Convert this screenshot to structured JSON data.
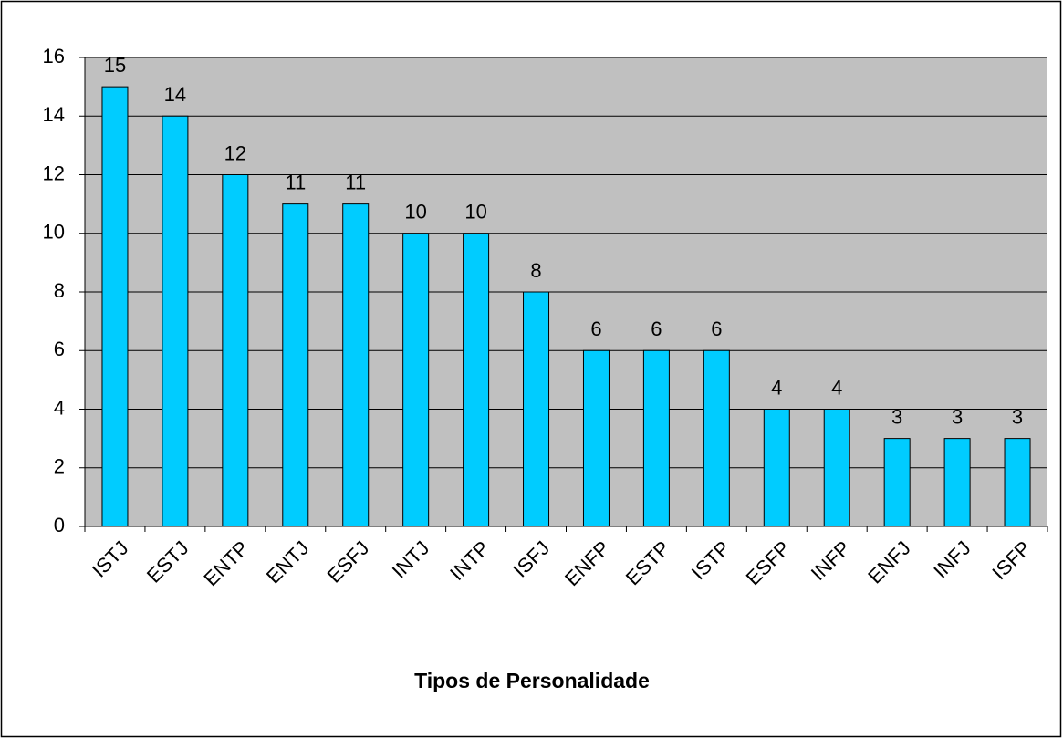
{
  "chart_data": {
    "type": "bar",
    "xlabel": "Tipos de Personalidade",
    "categories": [
      "ISTJ",
      "ESTJ",
      "ENTP",
      "ENTJ",
      "ESFJ",
      "INTJ",
      "INTP",
      "ISFJ",
      "ENFP",
      "ESTP",
      "ISTP",
      "ESFP",
      "INFP",
      "ENFJ",
      "INFJ",
      "ISFP"
    ],
    "values": [
      15,
      14,
      12,
      11,
      11,
      10,
      10,
      8,
      6,
      6,
      6,
      4,
      4,
      3,
      3,
      3
    ],
    "color": "#00ccff",
    "ylim": [
      0,
      16
    ],
    "yticks": [
      0,
      2,
      4,
      6,
      8,
      10,
      12,
      14,
      16
    ],
    "grid": true
  }
}
